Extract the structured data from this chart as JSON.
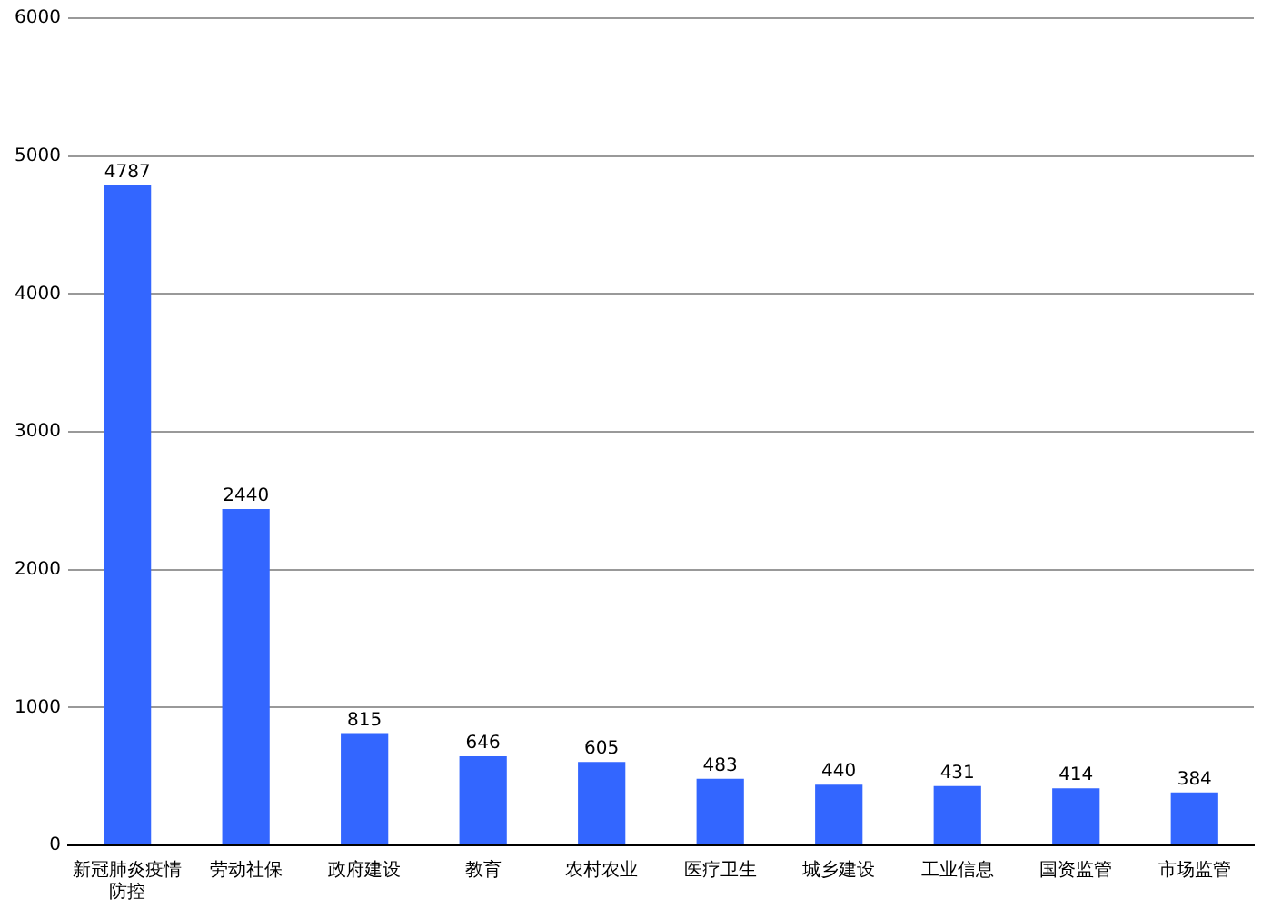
{
  "chart_data": {
    "type": "bar",
    "categories": [
      "新冠肺炎疫情防控",
      "劳动社保",
      "政府建设",
      "教育",
      "农村农业",
      "医疗卫生",
      "城乡建设",
      "工业信息",
      "国资监管",
      "市场监管"
    ],
    "values": [
      4787,
      2440,
      815,
      646,
      605,
      483,
      440,
      431,
      414,
      384
    ],
    "color": "#3366ff",
    "ylim": [
      0,
      6000
    ],
    "yticks": [
      0,
      1000,
      2000,
      3000,
      4000,
      5000,
      6000
    ],
    "grid": "y",
    "data_labels": true
  }
}
